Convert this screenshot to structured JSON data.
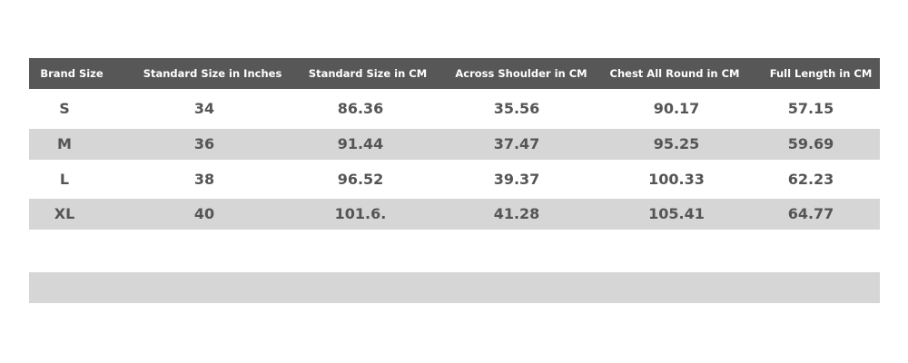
{
  "table": {
    "header": [
      "Brand Size",
      "Standard Size in Inches",
      "Standard Size in CM",
      "Across Shoulder in CM",
      "Chest All Round in CM",
      "Full Length in CM"
    ],
    "rows": [
      [
        "S",
        "34",
        "86.36",
        "35.56",
        "90.17",
        "57.15"
      ],
      [
        "M",
        "36",
        "91.44",
        "37.47",
        "95.25",
        "59.69"
      ],
      [
        "L",
        "38",
        "96.52",
        "39.37",
        "100.33",
        "62.23"
      ],
      [
        "XL",
        "40",
        "101.6.",
        "41.28",
        "105.41",
        "64.77"
      ]
    ]
  }
}
